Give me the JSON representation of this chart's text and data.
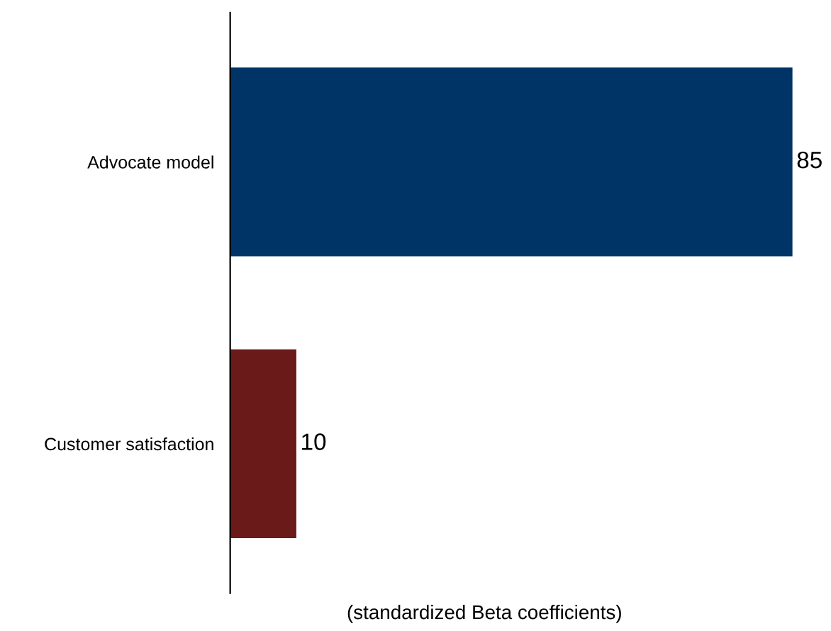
{
  "chart_data": {
    "type": "bar",
    "orientation": "horizontal",
    "xlabel": "(standardized Beta coefficients)",
    "categories": [
      "Advocate model",
      "Customer satisfaction"
    ],
    "values": [
      85,
      10
    ],
    "colors": [
      "#003366",
      "#6b1a1a"
    ],
    "data_labels": true,
    "tick_labels": "y"
  }
}
